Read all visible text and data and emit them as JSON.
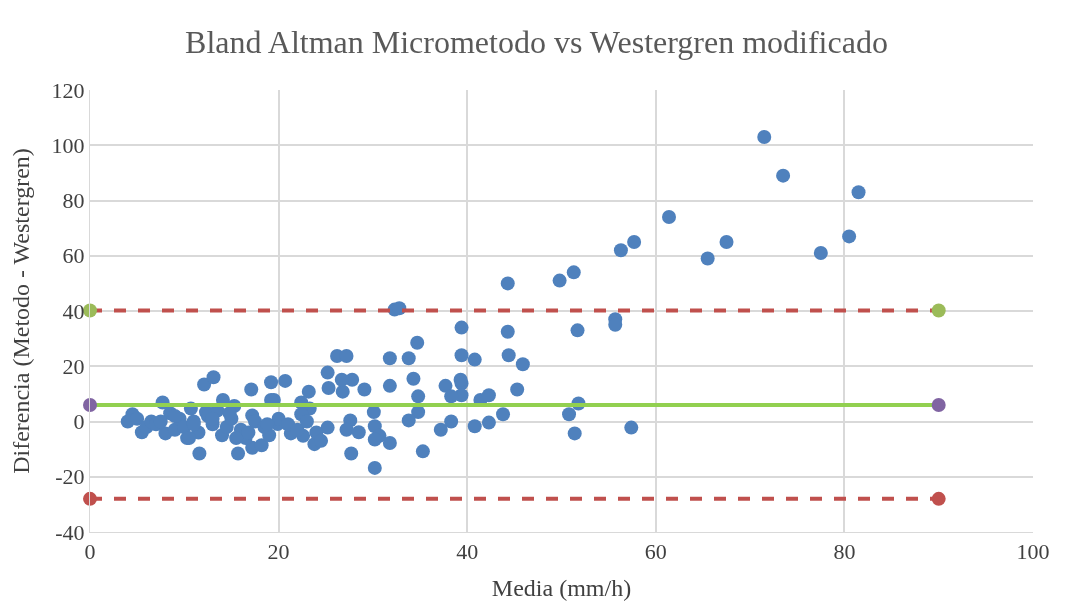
{
  "chart_data": {
    "type": "scatter",
    "title": "Bland Altman Micrometodo vs Westergren modificado",
    "xlabel": "Media (mm/h)",
    "ylabel": "Diferencia (Metodo - Westergren)",
    "xlim": [
      0,
      100
    ],
    "xticks": [
      0,
      20,
      40,
      60,
      80,
      100
    ],
    "ylim": [
      -40,
      120
    ],
    "yticks": [
      -40,
      -20,
      0,
      20,
      40,
      60,
      80,
      100,
      120
    ],
    "grid": true,
    "marker": "circle",
    "series": [
      {
        "color": "#4f81bd",
        "x": [
          71.5,
          73.5,
          81.5,
          80.5,
          77.5,
          67.5,
          65.5,
          61.4,
          57.7,
          56.3,
          55.7,
          55.7,
          51.7,
          51.3,
          49.8,
          44.3,
          39.4,
          44.4,
          39.4,
          40.8,
          45.9,
          39.4,
          39.4,
          41.4,
          42.3,
          45.3,
          40.8,
          42.3,
          43.8,
          50.8,
          51.8,
          51.4,
          57.4,
          44.3,
          32.3,
          32.8,
          20.7,
          19.5,
          23.2,
          22.4,
          23.3,
          22.4,
          19.9,
          21.3,
          22.6,
          23.8,
          25.2,
          25.2,
          26.2,
          27.2,
          25.3,
          26.8,
          27.8,
          26.7,
          29.1,
          27.6,
          27.2,
          28.5,
          30.1,
          30.2,
          30.7,
          30.2,
          31.8,
          27.7,
          30.2,
          31.8,
          31.8,
          33.8,
          34.7,
          34.3,
          34.8,
          34.8,
          33.8,
          35.3,
          37.7,
          38.3,
          39.3,
          37.2,
          38.3,
          12.1,
          13.1,
          17.1,
          19.2,
          19.2,
          7.7,
          4.5,
          4.0,
          5.5,
          8.0,
          10.3,
          11.6,
          15.7,
          17.2,
          18.2,
          14.1,
          15.3,
          10.7,
          12.3,
          17.2,
          5.0,
          6.0,
          6.5,
          7.0,
          8.5,
          9.0,
          9.5,
          10.0,
          11.0,
          11.5,
          12.5,
          13.0,
          13.5,
          14.0,
          14.5,
          15.0,
          16.0,
          16.5,
          17.5,
          18.5,
          19.0,
          20.0,
          21.0,
          22.0,
          23.0,
          24.0,
          9.0,
          11.0,
          13.0,
          15.5,
          16.8,
          18.8,
          7.5,
          10.5,
          14.8,
          24.5
        ],
        "values": [
          103,
          89,
          83,
          67,
          61,
          65,
          59,
          74,
          65,
          62,
          37,
          35,
          33,
          54,
          51,
          50,
          34,
          24,
          24,
          22.4,
          20.7,
          13.8,
          9.5,
          7.8,
          9.5,
          11.6,
          -1.7,
          -0.4,
          2.6,
          2.6,
          6.5,
          -4.3,
          -2.2,
          32.5,
          40.5,
          41,
          14.7,
          7.8,
          10.8,
          6.9,
          4.7,
          2.6,
          -0.9,
          -4.3,
          -5.2,
          -8.2,
          -2.2,
          17.7,
          23.7,
          23.7,
          12.1,
          10.8,
          15.1,
          15.1,
          11.6,
          0.4,
          -3,
          -3.9,
          3.4,
          -1.7,
          -5.2,
          -6.5,
          -7.8,
          -11.6,
          -16.8,
          22.9,
          12.9,
          22.9,
          28.5,
          15.5,
          9.1,
          3.4,
          0.4,
          -10.8,
          12.9,
          9.1,
          15.1,
          -3,
          0,
          13.4,
          16,
          11.6,
          14.2,
          7.8,
          6.9,
          2.6,
          0,
          -3.9,
          -4.3,
          -6,
          -11.6,
          -11.6,
          -9.5,
          -8.6,
          7.8,
          5.6,
          4.7,
          3.4,
          2.2,
          1,
          -2,
          0,
          -1,
          3,
          -3,
          1,
          -2,
          0,
          -4,
          2,
          -1,
          4,
          -5,
          -2,
          1,
          -3,
          -6,
          0,
          -2,
          -5,
          1,
          -1,
          -3,
          0,
          -4,
          2,
          -1,
          1,
          -6,
          -4,
          -1,
          0,
          -6,
          3,
          -7
        ]
      },
      {
        "type": "line",
        "color": "#92d050",
        "line_style": "solid",
        "marker": "none",
        "x": [
          0,
          90
        ],
        "values": [
          6,
          6
        ]
      },
      {
        "type": "line",
        "color": "#c0504d",
        "line_style": "dashed",
        "marker": "none",
        "x": [
          0,
          90
        ],
        "values": [
          40.2,
          40.2
        ]
      },
      {
        "type": "line",
        "color": "#c0504d",
        "line_style": "dashed",
        "marker": "none",
        "x": [
          0,
          90
        ],
        "values": [
          -28,
          -28
        ]
      },
      {
        "type": "scatter",
        "color": "#8064a2",
        "x": [
          0,
          90
        ],
        "values": [
          6,
          6
        ]
      },
      {
        "type": "scatter",
        "color": "#9bbb59",
        "x": [
          0,
          90
        ],
        "values": [
          40.2,
          40.2
        ]
      },
      {
        "type": "scatter",
        "color": "#c0504d",
        "x": [
          0,
          90
        ],
        "values": [
          -28,
          -28
        ]
      }
    ]
  }
}
